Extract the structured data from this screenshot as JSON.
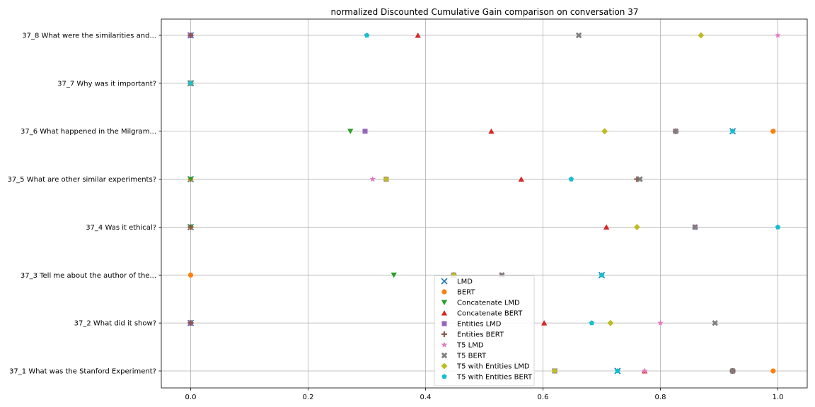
{
  "chart_data": {
    "type": "scatter",
    "title": "normalized Discounted Cumulative Gain comparison on conversation 37",
    "xlabel": "",
    "ylabel": "",
    "xlim": [
      -0.05,
      1.05
    ],
    "xticks": [
      0.0,
      0.2,
      0.4,
      0.6,
      0.8,
      1.0
    ],
    "xtick_labels": [
      "0.0",
      "0.2",
      "0.4",
      "0.6",
      "0.8",
      "1.0"
    ],
    "grid": true,
    "legend_position": "lower-center",
    "categories": [
      "37_1 What was the Stanford Experiment?",
      "37_2 What did it show?",
      "37_3 Tell me about the author of the...",
      "37_4 Was it ethical?",
      "37_5 What are other similar experiments?",
      "37_6 What happened in the Milgram...",
      "37_7 Why was it important?",
      "37_8 What were the similarities and..."
    ],
    "series": [
      {
        "name": "LMD",
        "marker": "x",
        "color": "#1f77b4",
        "values": [
          0.727,
          0.0,
          0.7,
          0.0,
          0.0,
          0.923,
          0.0,
          0.0
        ]
      },
      {
        "name": "BERT",
        "marker": "circle",
        "color": "#ff7f0e",
        "values": [
          0.992,
          0.0,
          0.0,
          0.0,
          0.0,
          0.992,
          0.0,
          0.0
        ]
      },
      {
        "name": "Concatenate LMD",
        "marker": "triangle-down",
        "color": "#2ca02c",
        "values": [
          0.62,
          0.0,
          0.346,
          0.0,
          0.0,
          0.272,
          0.0,
          0.0
        ]
      },
      {
        "name": "Concatenate BERT",
        "marker": "triangle-up",
        "color": "#d62728",
        "values": [
          0.773,
          0.602,
          0.448,
          0.708,
          0.563,
          0.512,
          0.0,
          0.387
        ]
      },
      {
        "name": "Entities LMD",
        "marker": "square",
        "color": "#9467bd",
        "values": [
          0.62,
          0.0,
          0.448,
          0.859,
          0.333,
          0.297,
          0.0,
          0.0
        ]
      },
      {
        "name": "Entities BERT",
        "marker": "plus",
        "color": "#8c564b",
        "values": [
          0.923,
          0.0,
          0.448,
          0.0,
          0.76,
          0.826,
          0.0,
          0.0
        ]
      },
      {
        "name": "T5 LMD",
        "marker": "star",
        "color": "#e377c2",
        "values": [
          0.773,
          0.8,
          0.53,
          0.859,
          0.31,
          0.826,
          0.0,
          1.0
        ]
      },
      {
        "name": "T5 BERT",
        "marker": "x-thick",
        "color": "#7f7f7f",
        "values": [
          0.923,
          0.893,
          0.53,
          0.859,
          0.765,
          0.826,
          0.0,
          0.661
        ]
      },
      {
        "name": "T5 with Entities LMD",
        "marker": "diamond",
        "color": "#bcbd22",
        "values": [
          0.62,
          0.715,
          0.448,
          0.76,
          0.333,
          0.705,
          0.0,
          0.869
        ]
      },
      {
        "name": "T5 with Entities BERT",
        "marker": "pentagon",
        "color": "#17becf",
        "values": [
          0.727,
          0.683,
          0.7,
          1.0,
          0.648,
          0.923,
          0.0,
          0.3
        ]
      }
    ]
  }
}
